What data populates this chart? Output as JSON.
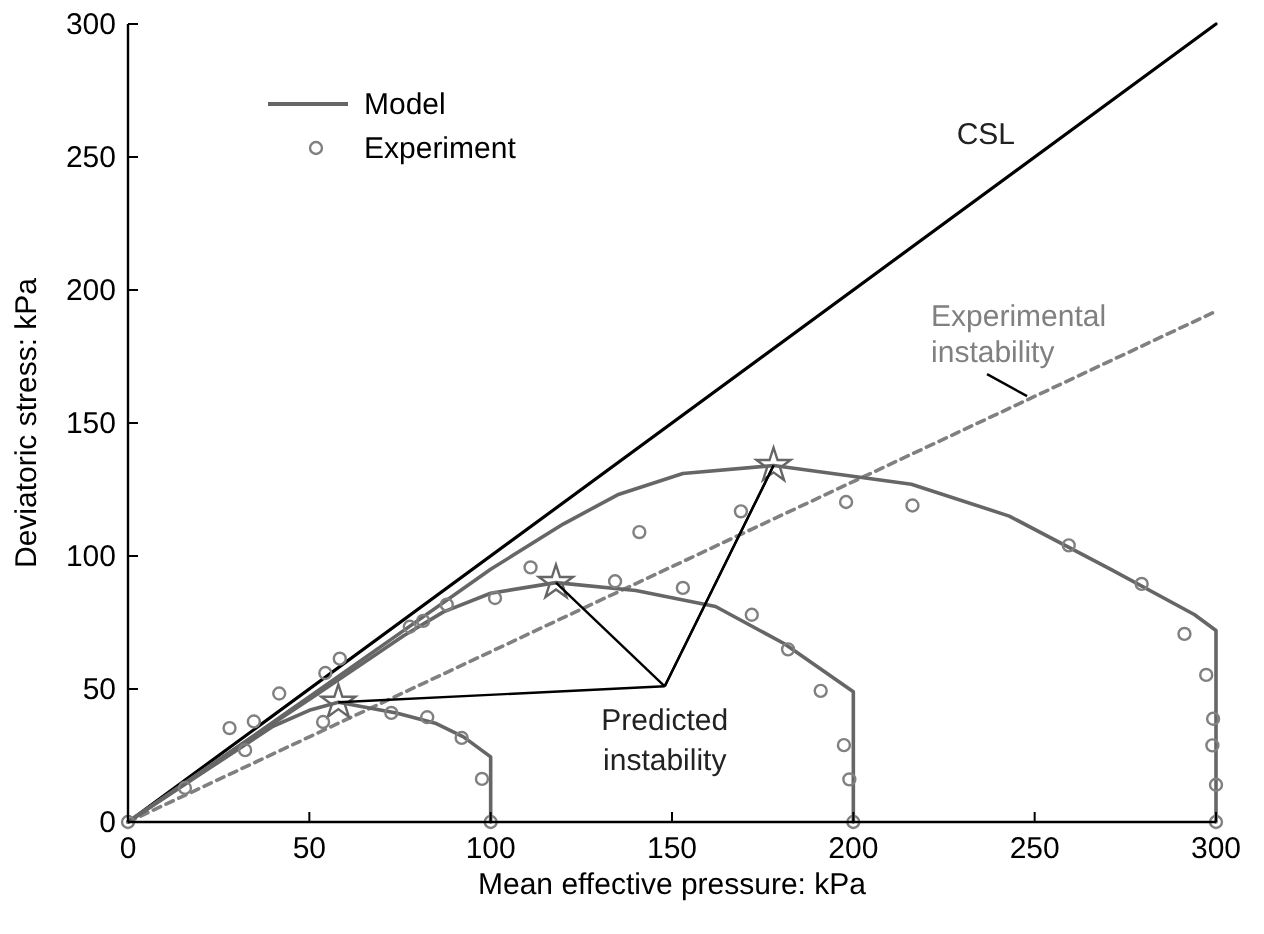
{
  "chart_data": {
    "type": "line",
    "xlabel": "Mean effective pressure: kPa",
    "ylabel": "Deviatoric stress: kPa",
    "xlim": [
      0,
      300
    ],
    "ylim": [
      0,
      300
    ],
    "xticks": [
      0,
      50,
      100,
      150,
      200,
      250,
      300
    ],
    "yticks": [
      0,
      50,
      100,
      150,
      200,
      250,
      300
    ],
    "grid": false,
    "legend": "top left",
    "annotations": [
      {
        "text": "Predicted instability",
        "x": 178,
        "y": 134
      }
    ],
    "series": [
      {
        "name": "CSL",
        "type": "line",
        "color": "#000000",
        "x": [
          0,
          300
        ],
        "values": [
          0,
          300
        ],
        "marker": "none",
        "line_style": "solid"
      },
      {
        "name": "Experimental instability",
        "type": "line",
        "color": "#808080",
        "x": [
          0,
          300
        ],
        "values": [
          0,
          192
        ],
        "marker": "none",
        "line_style": "dashed"
      },
      {
        "name": "Model",
        "type": "line",
        "color": "#666666",
        "x": [
          0,
          20,
          40,
          50,
          58,
          74,
          85,
          92.5,
          100,
          100
        ],
        "values": [
          0,
          18,
          36,
          42,
          45,
          41,
          37,
          32,
          24.5,
          0
        ],
        "marker": "none",
        "line_style": "solid"
      },
      {
        "type": "line",
        "color": "#666666",
        "x": [
          0,
          30,
          51,
          76,
          87,
          100,
          118,
          140,
          162,
          181,
          200,
          200
        ],
        "values": [
          0,
          28,
          47,
          70,
          79,
          86,
          90,
          87,
          81,
          67,
          49,
          0
        ],
        "marker": "none",
        "line_style": "solid"
      },
      {
        "type": "line",
        "color": "#666666",
        "x": [
          0,
          30,
          51,
          75,
          100,
          120,
          135,
          153,
          178,
          216,
          243,
          271,
          294,
          300,
          300
        ],
        "values": [
          0,
          28,
          48,
          71,
          95,
          112,
          123,
          131,
          134,
          127,
          115,
          95,
          78,
          72,
          0
        ],
        "marker": "none",
        "line_style": "solid"
      },
      {
        "type": "scatter",
        "color": "#666666",
        "x": [
          58,
          118,
          178
        ],
        "values": [
          45,
          90,
          134
        ],
        "marker": "star"
      },
      {
        "name": "Experiment",
        "type": "scatter",
        "color": "#808080",
        "marker": "circle",
        "x": [
          0,
          15.7,
          28,
          32.3,
          34.7,
          41.7,
          53.8,
          54.4,
          58.4,
          72.6,
          82.5,
          92,
          97.6,
          100,
          77.7,
          81.4,
          87.9,
          101.2,
          111,
          134.3,
          141,
          153,
          169,
          172,
          182,
          191,
          197.4,
          198.9,
          200,
          198,
          216.3,
          259.4,
          279.5,
          291.3,
          297.3,
          299.2,
          299,
          300,
          300
        ],
        "values": [
          0,
          12.8,
          35.3,
          27,
          37.8,
          48.3,
          37.6,
          56,
          61.4,
          41,
          39.4,
          31.6,
          16.2,
          0,
          73.4,
          75.6,
          81.7,
          84.2,
          95.7,
          90.5,
          109,
          88,
          116.8,
          77.9,
          64.9,
          49.3,
          28.9,
          16,
          0,
          120.3,
          119,
          104,
          89.5,
          70.7,
          55.3,
          38.8,
          28.8,
          14,
          0
        ]
      }
    ]
  }
}
